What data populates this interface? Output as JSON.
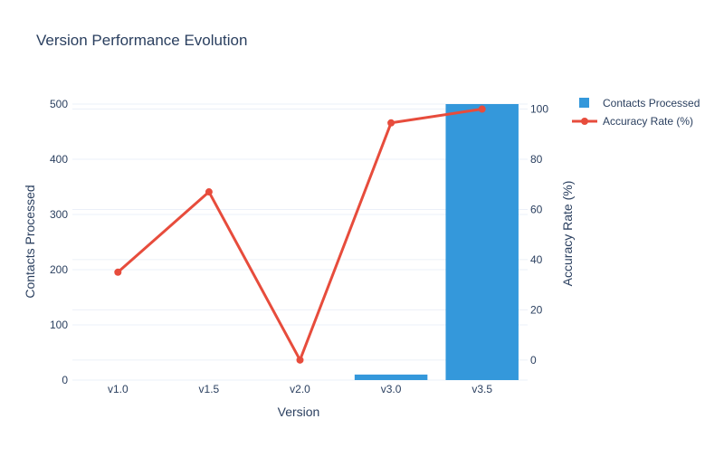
{
  "chart_data": {
    "type": "bar",
    "title": "Version Performance Evolution",
    "xlabel": "Version",
    "ylabel": "Contacts Processed",
    "y2label": "Accuracy Rate (%)",
    "categories": [
      "v1.0",
      "v1.5",
      "v2.0",
      "v3.0",
      "v3.5"
    ],
    "ylim": [
      0,
      500
    ],
    "y2lim": [
      -8,
      102
    ],
    "yticks": [
      0,
      100,
      200,
      300,
      400,
      500
    ],
    "y2ticks": [
      0,
      20,
      40,
      60,
      80,
      100
    ],
    "grid": true,
    "legend_position": "top-right",
    "series": [
      {
        "name": "Contacts Processed",
        "type": "bar",
        "axis": "left",
        "color": "#3498db",
        "values": [
          0,
          0,
          0,
          10,
          500
        ]
      },
      {
        "name": "Accuracy Rate (%)",
        "type": "line",
        "axis": "right",
        "color": "#e74c3c",
        "values": [
          35,
          67,
          0,
          94.5,
          100
        ]
      }
    ]
  }
}
